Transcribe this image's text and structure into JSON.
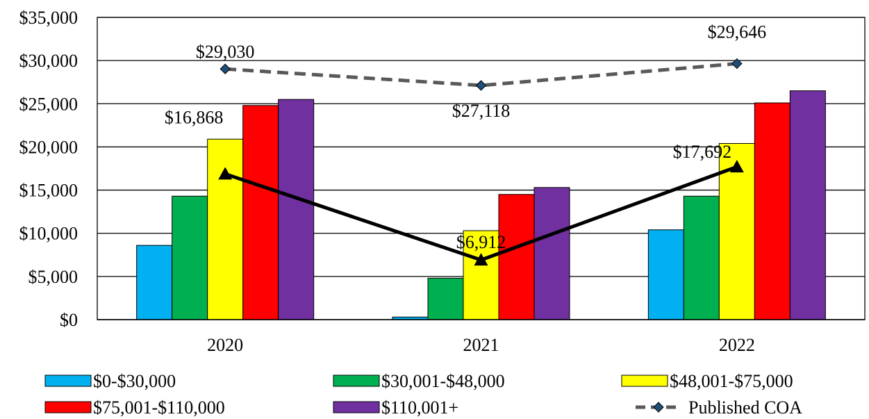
{
  "chart_data": {
    "type": "bar",
    "categories": [
      "2020",
      "2021",
      "2022"
    ],
    "series": [
      {
        "name": "$0-$30,000",
        "values": [
          8600,
          300,
          10400
        ],
        "color": "#00B0F0"
      },
      {
        "name": "$30,001-$48,000",
        "values": [
          14300,
          4800,
          14300
        ],
        "color": "#00B050"
      },
      {
        "name": "$48,001-$75,000",
        "values": [
          20900,
          10300,
          20400
        ],
        "color": "#FFFF00"
      },
      {
        "name": "$75,001-$110,000",
        "values": [
          24800,
          14500,
          25100
        ],
        "color": "#FF0000"
      },
      {
        "name": "$110,001+",
        "values": [
          25500,
          15300,
          26500
        ],
        "color": "#7030A0"
      }
    ],
    "line_series": [
      {
        "name": "Published COA",
        "values": [
          29030,
          27118,
          29646
        ],
        "labels": [
          "$29,030",
          "$27,118",
          "$29,646"
        ],
        "style": "dashed",
        "marker": "diamond",
        "color": "#595959",
        "marker_color": "#1F4E79"
      },
      {
        "values": [
          16868,
          6912,
          17692
        ],
        "labels": [
          "$16,868",
          "$6,912",
          "$17,692"
        ],
        "style": "solid",
        "marker": "triangle",
        "color": "#000000"
      }
    ],
    "ylim": [
      0,
      35000
    ],
    "yticks": [
      0,
      5000,
      10000,
      15000,
      20000,
      25000,
      30000,
      35000
    ],
    "ytick_labels": [
      "$0",
      "$5,000",
      "$10,000",
      "$15,000",
      "$20,000",
      "$25,000",
      "$30,000",
      "$35,000"
    ],
    "grid": true,
    "legend_position": "bottom"
  }
}
